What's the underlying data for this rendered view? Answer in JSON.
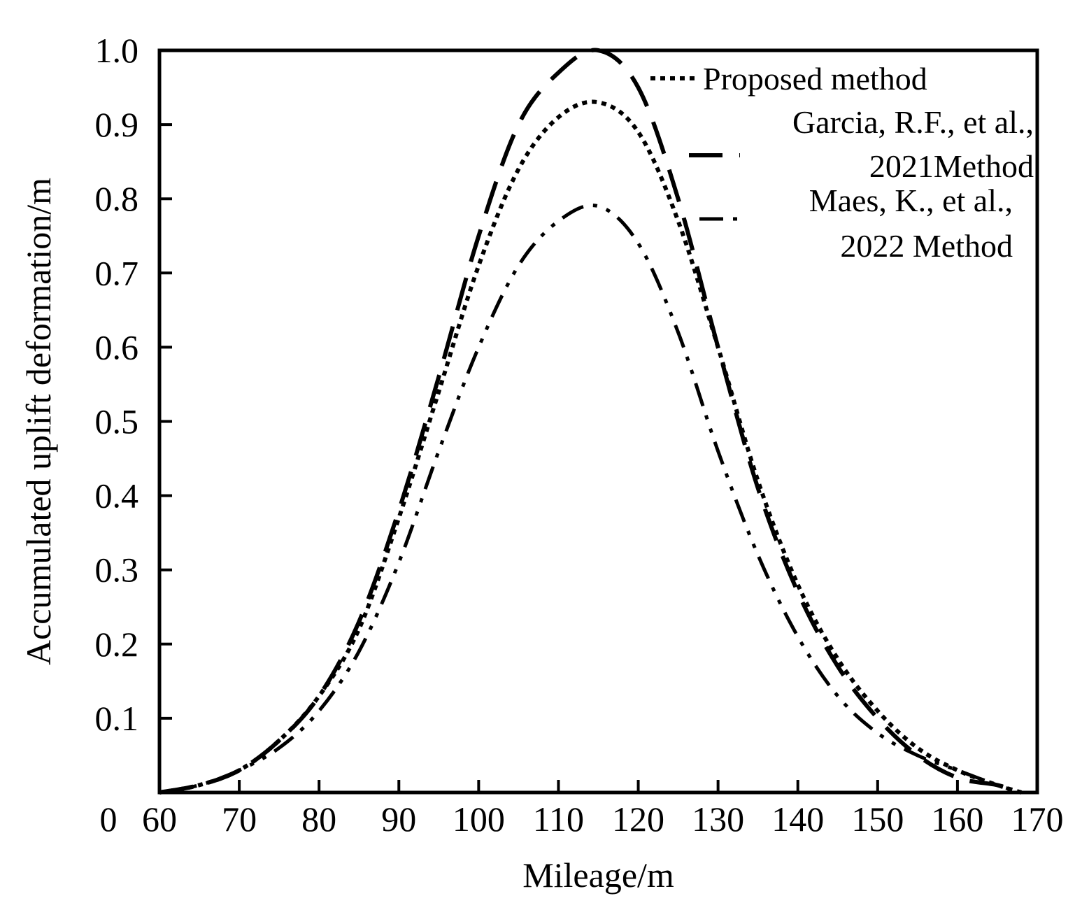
{
  "chart_data": {
    "type": "line",
    "title": "",
    "xlabel": "Mileage/m",
    "ylabel": "Accumulated uplift deformation/m",
    "xlim": [
      60,
      170
    ],
    "ylim": [
      0,
      1.0
    ],
    "x_ticks": [
      60,
      70,
      80,
      90,
      100,
      110,
      120,
      130,
      140,
      150,
      160,
      170
    ],
    "x_tick_labels": [
      "60",
      "70",
      "80",
      "90",
      "100",
      "110",
      "120",
      "130",
      "140",
      "150",
      "160",
      "170"
    ],
    "y_ticks": [
      0.1,
      0.2,
      0.3,
      0.4,
      0.5,
      0.6,
      0.7,
      0.8,
      0.9,
      1.0
    ],
    "y_tick_labels": [
      "0.1",
      "0.2",
      "0.3",
      "0.4",
      "0.5",
      "0.6",
      "0.7",
      "0.8",
      "0.9",
      "1.0"
    ],
    "origin_label": "0",
    "legend_position": "top-right",
    "series": [
      {
        "name": "Proposed method",
        "legend_lines": [
          "Proposed method"
        ],
        "style": "dotted",
        "x": [
          60,
          65,
          70,
          75,
          80,
          85,
          90,
          95,
          100,
          105,
          110,
          115,
          120,
          125,
          130,
          135,
          140,
          145,
          150,
          155,
          160,
          165,
          168
        ],
        "y": [
          0.0,
          0.01,
          0.03,
          0.07,
          0.13,
          0.22,
          0.37,
          0.54,
          0.71,
          0.84,
          0.91,
          0.93,
          0.89,
          0.77,
          0.6,
          0.42,
          0.28,
          0.18,
          0.11,
          0.06,
          0.03,
          0.01,
          0.0
        ]
      },
      {
        "name": "Garcia, R.F., et al., 2021Method",
        "legend_lines": [
          "Garcia, R.F., et al.,",
          "2021Method"
        ],
        "style": "long-dash",
        "x": [
          60,
          65,
          70,
          75,
          80,
          85,
          90,
          95,
          100,
          105,
          110,
          115,
          120,
          125,
          130,
          135,
          140,
          145,
          150,
          155,
          160,
          165,
          168
        ],
        "y": [
          0.0,
          0.01,
          0.03,
          0.07,
          0.13,
          0.23,
          0.38,
          0.56,
          0.75,
          0.9,
          0.97,
          1.0,
          0.95,
          0.8,
          0.6,
          0.41,
          0.27,
          0.17,
          0.1,
          0.05,
          0.02,
          0.01,
          0.0
        ]
      },
      {
        "name": "Maes, K., et al., 2022 Method",
        "legend_lines": [
          "Maes, K., et al.,",
          "2022 Method"
        ],
        "style": "dash-dot-dot",
        "x": [
          60,
          65,
          70,
          75,
          80,
          85,
          90,
          95,
          100,
          105,
          110,
          115,
          120,
          125,
          130,
          135,
          140,
          145,
          150,
          155,
          160,
          165,
          168
        ],
        "y": [
          0.0,
          0.01,
          0.03,
          0.06,
          0.11,
          0.19,
          0.31,
          0.46,
          0.6,
          0.71,
          0.77,
          0.79,
          0.74,
          0.62,
          0.46,
          0.32,
          0.21,
          0.13,
          0.08,
          0.05,
          0.03,
          0.01,
          0.0
        ]
      }
    ]
  }
}
